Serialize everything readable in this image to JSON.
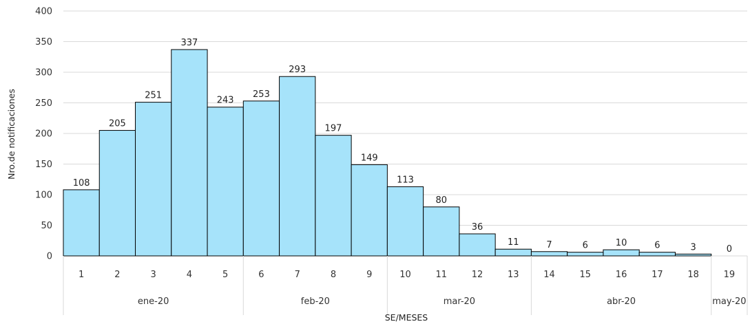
{
  "chart_data": {
    "type": "bar",
    "title": "",
    "xlabel": "SE/MESES",
    "ylabel": "Nro.de notificaciones",
    "ylim": [
      0,
      400
    ],
    "yticks": [
      0,
      50,
      100,
      150,
      200,
      250,
      300,
      350,
      400
    ],
    "grid": true,
    "colors": {
      "bar_fill": "#a6e3fa",
      "bar_stroke": "#000000",
      "grid": "#d9d9d9",
      "separator": "#d9d9d9"
    },
    "categories": [
      "1",
      "2",
      "3",
      "4",
      "5",
      "6",
      "7",
      "8",
      "9",
      "10",
      "11",
      "12",
      "13",
      "14",
      "15",
      "16",
      "17",
      "18",
      "19"
    ],
    "values": [
      108,
      205,
      251,
      337,
      243,
      253,
      293,
      197,
      149,
      113,
      80,
      36,
      11,
      7,
      6,
      10,
      6,
      3,
      0
    ],
    "groups": [
      {
        "label": "ene-20",
        "count": 5
      },
      {
        "label": "feb-20",
        "count": 4
      },
      {
        "label": "mar-20",
        "count": 4
      },
      {
        "label": "abr-20",
        "count": 5
      },
      {
        "label": "may-20",
        "count": 1
      }
    ]
  }
}
